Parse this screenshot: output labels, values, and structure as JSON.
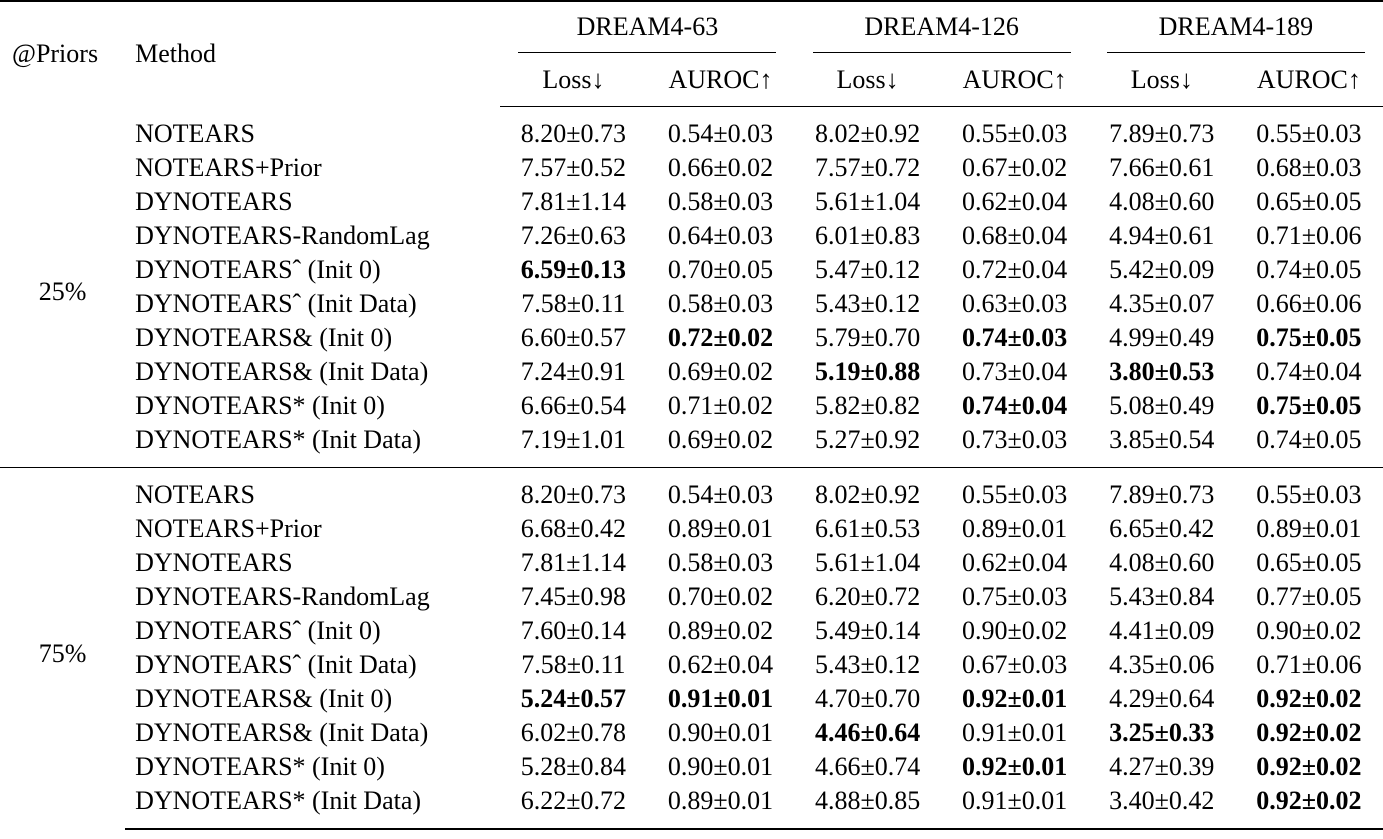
{
  "header": {
    "priors_label": "@Priors",
    "method_label": "Method",
    "datasets": [
      "DREAM4-63",
      "DREAM4-126",
      "DREAM4-189"
    ],
    "metrics": [
      "Loss↓",
      "AUROC↑"
    ]
  },
  "groups": [
    {
      "prior": "25%",
      "rows": [
        {
          "method": "NOTEARS",
          "values": [
            "8.20±0.73",
            "0.54±0.03",
            "8.02±0.92",
            "0.55±0.03",
            "7.89±0.73",
            "0.55±0.03"
          ],
          "bold": [
            false,
            false,
            false,
            false,
            false,
            false
          ]
        },
        {
          "method": "NOTEARS+Prior",
          "values": [
            "7.57±0.52",
            "0.66±0.02",
            "7.57±0.72",
            "0.67±0.02",
            "7.66±0.61",
            "0.68±0.03"
          ],
          "bold": [
            false,
            false,
            false,
            false,
            false,
            false
          ]
        },
        {
          "method": "DYNOTEARS",
          "values": [
            "7.81±1.14",
            "0.58±0.03",
            "5.61±1.04",
            "0.62±0.04",
            "4.08±0.60",
            "0.65±0.05"
          ],
          "bold": [
            false,
            false,
            false,
            false,
            false,
            false
          ]
        },
        {
          "method": "DYNOTEARS-RandomLag",
          "values": [
            "7.26±0.63",
            "0.64±0.03",
            "6.01±0.83",
            "0.68±0.04",
            "4.94±0.61",
            "0.71±0.06"
          ],
          "bold": [
            false,
            false,
            false,
            false,
            false,
            false
          ]
        },
        {
          "method": "DYNOTEARSˆ (Init 0)",
          "values": [
            "6.59±0.13",
            "0.70±0.05",
            "5.47±0.12",
            "0.72±0.04",
            "5.42±0.09",
            "0.74±0.05"
          ],
          "bold": [
            true,
            false,
            false,
            false,
            false,
            false
          ]
        },
        {
          "method": "DYNOTEARSˆ (Init Data)",
          "values": [
            "7.58±0.11",
            "0.58±0.03",
            "5.43±0.12",
            "0.63±0.03",
            "4.35±0.07",
            "0.66±0.06"
          ],
          "bold": [
            false,
            false,
            false,
            false,
            false,
            false
          ]
        },
        {
          "method": "DYNOTEARS& (Init 0)",
          "values": [
            "6.60±0.57",
            "0.72±0.02",
            "5.79±0.70",
            "0.74±0.03",
            "4.99±0.49",
            "0.75±0.05"
          ],
          "bold": [
            false,
            true,
            false,
            true,
            false,
            true
          ]
        },
        {
          "method": "DYNOTEARS& (Init Data)",
          "values": [
            "7.24±0.91",
            "0.69±0.02",
            "5.19±0.88",
            "0.73±0.04",
            "3.80±0.53",
            "0.74±0.04"
          ],
          "bold": [
            false,
            false,
            true,
            false,
            true,
            false
          ]
        },
        {
          "method": "DYNOTEARS* (Init 0)",
          "values": [
            "6.66±0.54",
            "0.71±0.02",
            "5.82±0.82",
            "0.74±0.04",
            "5.08±0.49",
            "0.75±0.05"
          ],
          "bold": [
            false,
            false,
            false,
            true,
            false,
            true
          ]
        },
        {
          "method": "DYNOTEARS* (Init Data)",
          "values": [
            "7.19±1.01",
            "0.69±0.02",
            "5.27±0.92",
            "0.73±0.03",
            "3.85±0.54",
            "0.74±0.05"
          ],
          "bold": [
            false,
            false,
            false,
            false,
            false,
            false
          ]
        }
      ]
    },
    {
      "prior": "75%",
      "rows": [
        {
          "method": "NOTEARS",
          "values": [
            "8.20±0.73",
            "0.54±0.03",
            "8.02±0.92",
            "0.55±0.03",
            "7.89±0.73",
            "0.55±0.03"
          ],
          "bold": [
            false,
            false,
            false,
            false,
            false,
            false
          ]
        },
        {
          "method": "NOTEARS+Prior",
          "values": [
            "6.68±0.42",
            "0.89±0.01",
            "6.61±0.53",
            "0.89±0.01",
            "6.65±0.42",
            "0.89±0.01"
          ],
          "bold": [
            false,
            false,
            false,
            false,
            false,
            false
          ]
        },
        {
          "method": "DYNOTEARS",
          "values": [
            "7.81±1.14",
            "0.58±0.03",
            "5.61±1.04",
            "0.62±0.04",
            "4.08±0.60",
            "0.65±0.05"
          ],
          "bold": [
            false,
            false,
            false,
            false,
            false,
            false
          ]
        },
        {
          "method": "DYNOTEARS-RandomLag",
          "values": [
            "7.45±0.98",
            "0.70±0.02",
            "6.20±0.72",
            "0.75±0.03",
            "5.43±0.84",
            "0.77±0.05"
          ],
          "bold": [
            false,
            false,
            false,
            false,
            false,
            false
          ]
        },
        {
          "method": "DYNOTEARSˆ (Init 0)",
          "values": [
            "7.60±0.14",
            "0.89±0.02",
            "5.49±0.14",
            "0.90±0.02",
            "4.41±0.09",
            "0.90±0.02"
          ],
          "bold": [
            false,
            false,
            false,
            false,
            false,
            false
          ]
        },
        {
          "method": "DYNOTEARSˆ (Init Data)",
          "values": [
            "7.58±0.11",
            "0.62±0.04",
            "5.43±0.12",
            "0.67±0.03",
            "4.35±0.06",
            "0.71±0.06"
          ],
          "bold": [
            false,
            false,
            false,
            false,
            false,
            false
          ]
        },
        {
          "method": "DYNOTEARS& (Init 0)",
          "values": [
            "5.24±0.57",
            "0.91±0.01",
            "4.70±0.70",
            "0.92±0.01",
            "4.29±0.64",
            "0.92±0.02"
          ],
          "bold": [
            true,
            true,
            false,
            true,
            false,
            true
          ]
        },
        {
          "method": "DYNOTEARS& (Init Data)",
          "values": [
            "6.02±0.78",
            "0.90±0.01",
            "4.46±0.64",
            "0.91±0.01",
            "3.25±0.33",
            "0.92±0.02"
          ],
          "bold": [
            false,
            false,
            true,
            false,
            true,
            true
          ]
        },
        {
          "method": "DYNOTEARS* (Init 0)",
          "values": [
            "5.28±0.84",
            "0.90±0.01",
            "4.66±0.74",
            "0.92±0.01",
            "4.27±0.39",
            "0.92±0.02"
          ],
          "bold": [
            false,
            false,
            false,
            true,
            false,
            true
          ]
        },
        {
          "method": "DYNOTEARS* (Init Data)",
          "values": [
            "6.22±0.72",
            "0.89±0.01",
            "4.88±0.85",
            "0.91±0.01",
            "3.40±0.42",
            "0.92±0.02"
          ],
          "bold": [
            false,
            false,
            false,
            false,
            false,
            true
          ]
        }
      ]
    }
  ]
}
